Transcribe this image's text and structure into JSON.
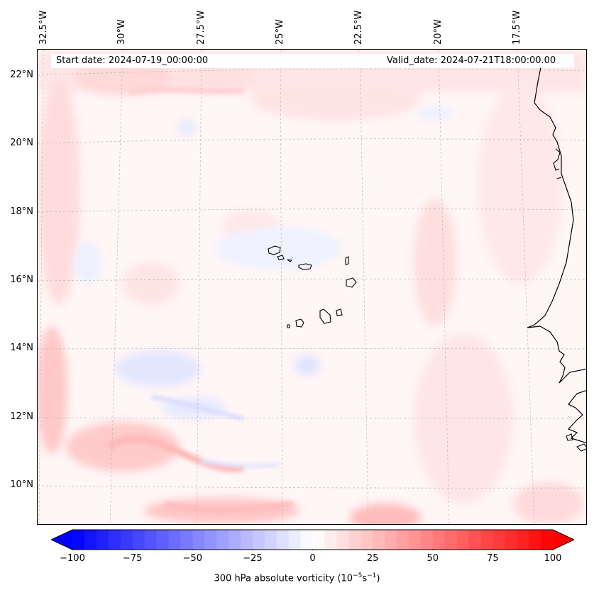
{
  "map": {
    "start_date": "Start date: 2024-07-19_00:00:00",
    "valid_date": "Valid_date: 2024-07-21T18:00:00.00",
    "longitude_labels": [
      "32.5°W",
      "30°W",
      "27.5°W",
      "25°W",
      "22.5°W",
      "20°W",
      "17.5°W"
    ],
    "latitude_labels": [
      "22°N",
      "20°N",
      "18°N",
      "16°N",
      "14°N",
      "12°N",
      "10°N"
    ],
    "field": "300 hPa absolute vorticity",
    "features": [
      "Cape Verde islands",
      "West African coastline (Senegal, Gambia, Guinea-Bissau)"
    ]
  },
  "colorbar": {
    "min": -100,
    "max": 100,
    "tick_labels": [
      "−100",
      "−75",
      "−50",
      "−25",
      "0",
      "25",
      "50",
      "75",
      "100"
    ],
    "label_prefix": "300 hPa absolute vorticity (10",
    "label_exp1": "−5",
    "label_mid": "s",
    "label_exp2": "−1",
    "label_suffix": ")",
    "cmap": "bwr",
    "colors": {
      "neg": "#0000ff",
      "zero": "#ffffff",
      "pos": "#ff0000"
    }
  }
}
